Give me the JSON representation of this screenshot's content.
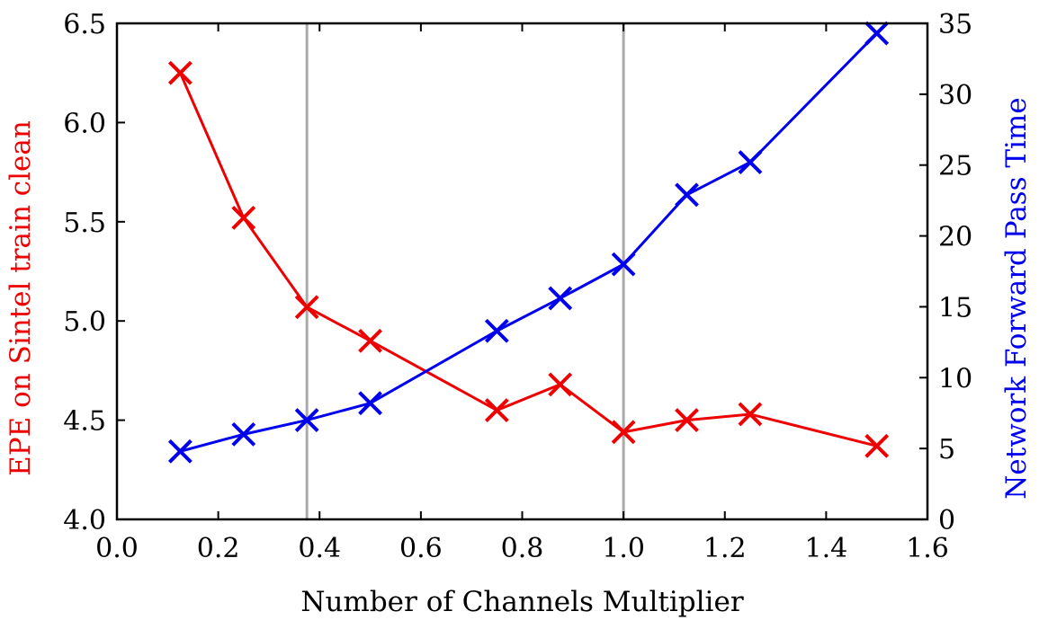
{
  "chart_data": {
    "type": "line",
    "xlabel": "Number of Channels Multiplier",
    "ylabel_left": "EPE on Sintel train clean",
    "ylabel_right": "Network Forward Pass Time",
    "xlim": [
      0.0,
      1.6
    ],
    "ylim_left": [
      4.0,
      6.5
    ],
    "ylim_right": [
      0,
      35
    ],
    "x_ticks": [
      "0.0",
      "0.2",
      "0.4",
      "0.6",
      "0.8",
      "1.0",
      "1.2",
      "1.4",
      "1.6"
    ],
    "y_left_ticks": [
      "4.0",
      "4.5",
      "5.0",
      "5.5",
      "6.0",
      "6.5"
    ],
    "y_right_ticks": [
      "0",
      "5",
      "10",
      "15",
      "20",
      "25",
      "30",
      "35"
    ],
    "vertical_lines": [
      0.375,
      1.0
    ],
    "grid": false,
    "series": [
      {
        "axis": "left",
        "color": "#ee0000",
        "marker": "x",
        "x": [
          0.125,
          0.25,
          0.375,
          0.5,
          0.75,
          0.875,
          1.0,
          1.125,
          1.25,
          1.5
        ],
        "values": [
          6.25,
          5.52,
          5.07,
          4.9,
          4.55,
          4.68,
          4.44,
          4.5,
          4.53,
          4.37
        ]
      },
      {
        "axis": "right",
        "color": "#0000ee",
        "marker": "x",
        "x": [
          0.125,
          0.25,
          0.375,
          0.5,
          0.75,
          0.875,
          1.0,
          1.125,
          1.25,
          1.5
        ],
        "values": [
          4.8,
          6.0,
          7.0,
          8.2,
          13.3,
          15.6,
          18.0,
          22.9,
          25.2,
          34.3
        ]
      }
    ]
  }
}
